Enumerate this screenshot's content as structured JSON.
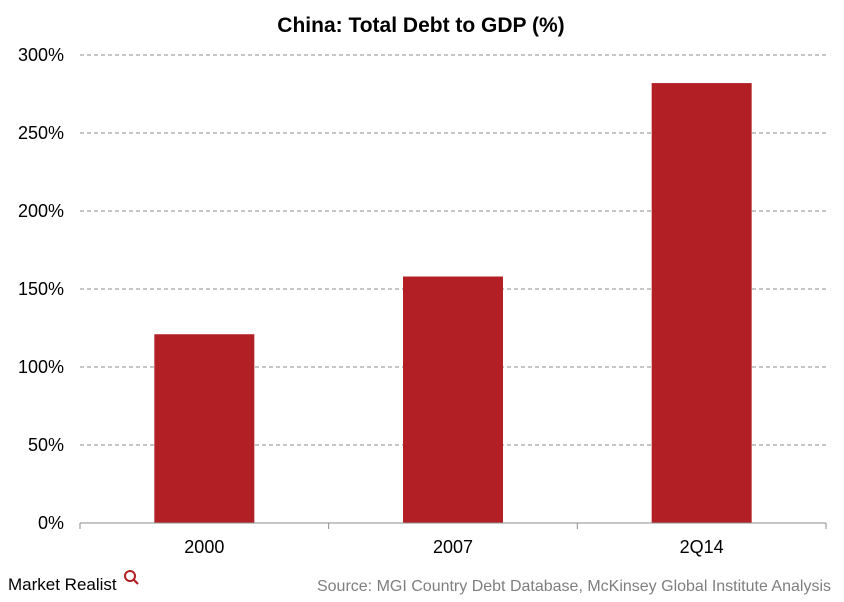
{
  "chart_data": {
    "type": "bar",
    "title": "China: Total Debt to GDP (%)",
    "categories": [
      "2000",
      "2007",
      "2Q14"
    ],
    "values": [
      121,
      158,
      282
    ],
    "unit": "%",
    "xlabel": "",
    "ylabel": "",
    "ylim": [
      0,
      300
    ],
    "yticks": [
      "0%",
      "50%",
      "100%",
      "150%",
      "200%",
      "250%",
      "300%"
    ],
    "grid": "horizontal-dashed",
    "bar_color": "#b21f24"
  },
  "footer": {
    "brand": "Market Realist",
    "brand_icon": "magnifier-icon",
    "source": "Source: MGI Country Debt Database, McKinsey Global Institute Analysis"
  }
}
